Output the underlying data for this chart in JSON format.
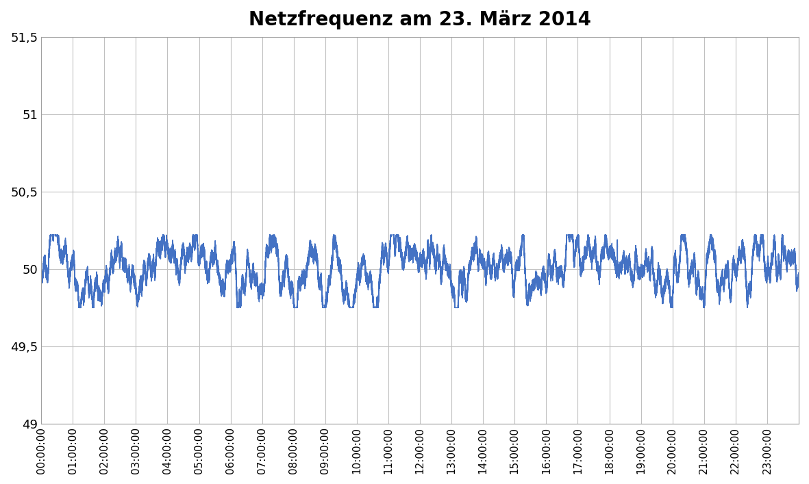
{
  "title": "Netzfrequenz am 23. März 2014",
  "title_fontsize": 20,
  "title_fontweight": "bold",
  "ylim": [
    49.0,
    51.5
  ],
  "ytick_labels": [
    "49",
    "49,5",
    "50",
    "50,5",
    "51",
    "51,5"
  ],
  "xtick_labels": [
    "00:00:00",
    "01:00:00",
    "02:00:00",
    "03:00:00",
    "04:00:00",
    "05:00:00",
    "06:00:00",
    "07:00:00",
    "08:00:00",
    "09:00:00",
    "10:00:00",
    "11:00:00",
    "12:00:00",
    "13:00:00",
    "14:00:00",
    "15:00:00",
    "16:00:00",
    "17:00:00",
    "18:00:00",
    "19:00:00",
    "20:00:00",
    "21:00:00",
    "22:00:00",
    "23:00:00"
  ],
  "line_color": "#4472C4",
  "line_width": 1.0,
  "background_color": "#ffffff",
  "grid_color": "#c0c0c0",
  "figsize": [
    11.81,
    7.07
  ],
  "dpi": 100,
  "n_points": 86400,
  "base_freq": 50.0,
  "noise_std": 0.04,
  "seed": 42
}
